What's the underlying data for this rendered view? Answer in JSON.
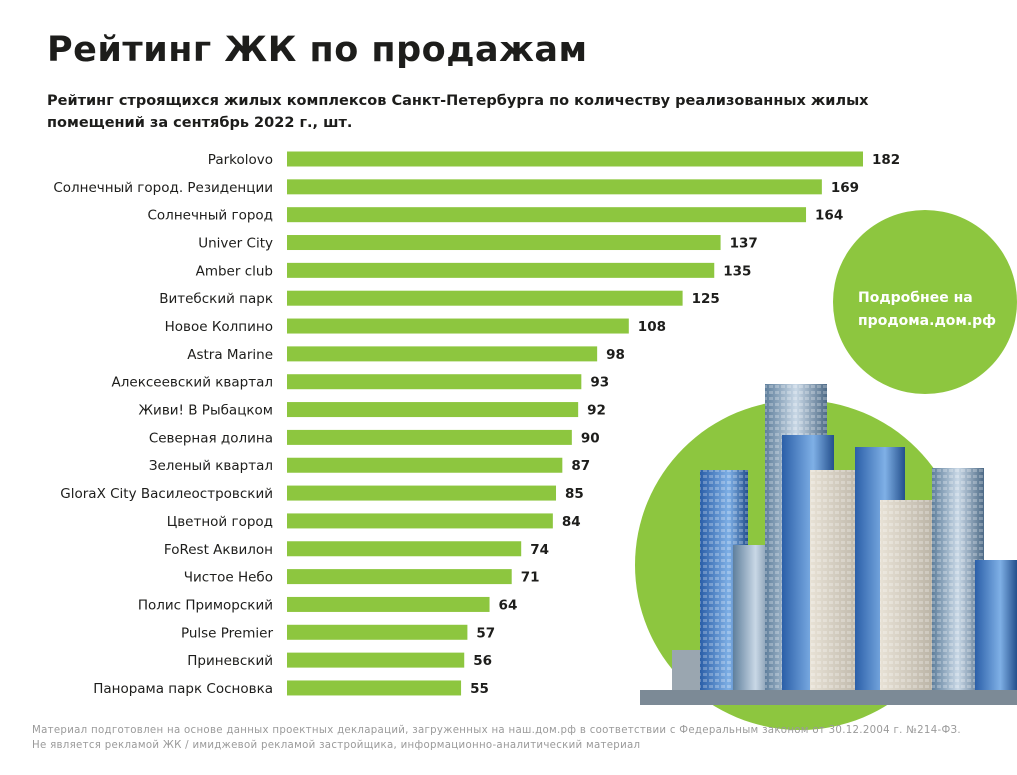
{
  "chart_data": {
    "type": "bar",
    "orientation": "horizontal",
    "title": "Рейтинг ЖК по продажам",
    "subtitle": "Рейтинг строящихся жилых комплексов Санкт-Петербурга по количеству реализованных жилых помещений за сентябрь 2022 г., шт.",
    "categories": [
      "Parkolovo",
      "Солнечный город. Резиденции",
      "Солнечный город",
      "Univer City",
      "Amber club",
      "Витебский парк",
      "Новое Колпино",
      "Astra Marine",
      "Алексеевский квартал",
      "Живи! В Рыбацком",
      "Северная долина",
      "Зеленый квартал",
      "GloraX City Василеостровский",
      "Цветной город",
      "FoRest Аквилон",
      "Чистое Небо",
      "Полис Приморский",
      "Pulse Premier",
      "Приневский",
      "Панорама парк Сосновка"
    ],
    "values": [
      182,
      169,
      164,
      137,
      135,
      125,
      108,
      98,
      93,
      92,
      90,
      87,
      85,
      84,
      74,
      71,
      64,
      57,
      56,
      55
    ],
    "color": "#8dc63f",
    "promo": "Подробнее на продома.дом.рф",
    "footnote": "Материал подготовлен на основе данных проектных деклараций, загруженных на наш.дом.рф в соответствии с Федеральным законом от 30.12.2004 г. №214-ФЗ. Не является рекламой ЖК / имиджевой рекламой застройщика, информационно-аналитический материал"
  }
}
